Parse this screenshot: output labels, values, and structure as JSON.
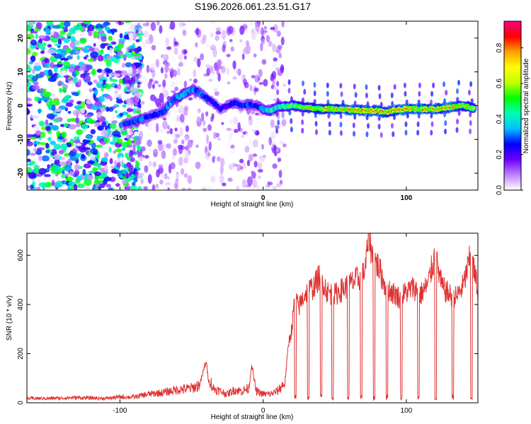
{
  "title": "S196.2026.061.23.51.G17",
  "chart_data": [
    {
      "type": "heatmap",
      "title": "S196.2026.061.23.51.G17",
      "xlabel": "Height of straight line (km)",
      "ylabel": "Frequency (Hz)",
      "xlim": [
        -165,
        150
      ],
      "ylim": [
        -25,
        25
      ],
      "xticks": [
        -100,
        0,
        100
      ],
      "yticks": [
        -20,
        -10,
        0,
        10,
        20
      ],
      "colorbar": {
        "label": "Normalized spectral amplitude",
        "range": [
          0,
          0.95
        ],
        "ticks": [
          "0.0",
          "0.2",
          "0.4",
          "0.6",
          "0.8"
        ],
        "colors": [
          "#ffffff",
          "#c080ff",
          "#6a00ff",
          "#0000ff",
          "#00c0ff",
          "#00ffb0",
          "#00ff00",
          "#c0ff00",
          "#ffff00",
          "#ffa000",
          "#ff0000",
          "#ff0080"
        ]
      },
      "ridge": {
        "x": [
          -97,
          -92,
          -85,
          -78,
          -70,
          -62,
          -55,
          -48,
          -42,
          -35,
          -30,
          -25,
          -20,
          -15,
          -10,
          -5,
          0,
          5,
          10,
          20,
          30,
          40,
          50,
          60,
          70,
          80,
          85,
          90,
          100,
          110,
          120,
          130,
          140,
          148
        ],
        "y": [
          -5.5,
          -5,
          -4,
          -3,
          -2,
          2,
          3.5,
          5,
          3,
          1,
          -1,
          0,
          1,
          0,
          0.5,
          0,
          -1,
          -1.5,
          -0.5,
          0,
          -0.5,
          -1,
          -1,
          -1.2,
          -1.5,
          -1.5,
          -2,
          -1.5,
          -1,
          -1,
          -1,
          -0.5,
          0,
          -1
        ],
        "amplitude": [
          0.35,
          0.4,
          0.45,
          0.35,
          0.4,
          0.45,
          0.5,
          0.45,
          0.4,
          0.35,
          0.3,
          0.3,
          0.35,
          0.35,
          0.4,
          0.35,
          0.45,
          0.5,
          0.55,
          0.6,
          0.7,
          0.75,
          0.8,
          0.8,
          0.85,
          0.85,
          0.75,
          0.8,
          0.85,
          0.8,
          0.85,
          0.8,
          0.75,
          0.7
        ]
      },
      "noise_region": {
        "x_range": [
          -165,
          -95
        ],
        "level": 0.25
      }
    },
    {
      "type": "line",
      "xlabel": "Height of straight line (km)",
      "ylabel": "SNR (10 * v/v)",
      "xlim": [
        -165,
        150
      ],
      "ylim": [
        0,
        690
      ],
      "xticks": [
        -100,
        0,
        100
      ],
      "yticks": [
        0,
        200,
        400,
        600
      ],
      "series": [
        {
          "name": "SNR",
          "color": "#e03030",
          "x": [
            -165,
            -150,
            -130,
            -110,
            -100,
            -90,
            -80,
            -70,
            -60,
            -50,
            -45,
            -42,
            -40,
            -38,
            -35,
            -30,
            -25,
            -20,
            -15,
            -10,
            -8,
            -5,
            0,
            5,
            10,
            15,
            18,
            20,
            22,
            25,
            28,
            30,
            35,
            40,
            45,
            50,
            55,
            60,
            65,
            70,
            72,
            74,
            76,
            80,
            85,
            90,
            95,
            100,
            105,
            110,
            115,
            120,
            125,
            130,
            135,
            140,
            145,
            150
          ],
          "y": [
            15,
            15,
            18,
            15,
            20,
            20,
            30,
            35,
            45,
            50,
            60,
            120,
            170,
            90,
            50,
            40,
            30,
            45,
            40,
            50,
            160,
            40,
            30,
            30,
            40,
            70,
            250,
            300,
            420,
            390,
            430,
            450,
            470,
            520,
            450,
            440,
            460,
            480,
            500,
            520,
            580,
            690,
            600,
            560,
            480,
            450,
            430,
            450,
            470,
            440,
            480,
            600,
            470,
            440,
            430,
            480,
            600,
            460
          ],
          "dropouts": [
            [
              22,
              23
            ],
            [
              31,
              32
            ],
            [
              40,
              41
            ],
            [
              48,
              49
            ],
            [
              59,
              60
            ],
            [
              68,
              69
            ],
            [
              77,
              78
            ],
            [
              86,
              87
            ],
            [
              96,
              97
            ],
            [
              108,
              109
            ],
            [
              120,
              121
            ],
            [
              132,
              133
            ],
            [
              145,
              146
            ]
          ]
        }
      ]
    }
  ]
}
